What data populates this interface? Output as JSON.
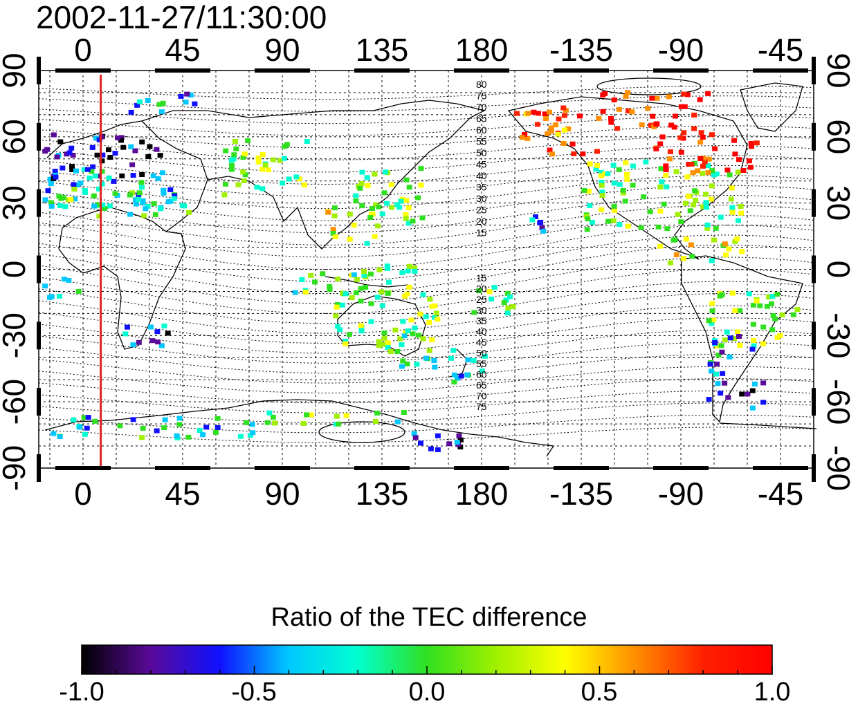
{
  "timestamp": "2002-11-27/11:30:00",
  "map": {
    "lon_ticks": [
      "0",
      "45",
      "90",
      "135",
      "180",
      "-135",
      "-90",
      "-45"
    ],
    "lat_ticks_left": [
      "90",
      "60",
      "30",
      "0",
      "-30",
      "-60",
      "-90"
    ],
    "lat_ticks_right": [
      "90",
      "60",
      "30",
      "0",
      "-30",
      "-60",
      "-90"
    ],
    "lon_range": [
      -20,
      330
    ],
    "lat_range": [
      -90,
      90
    ],
    "marker_longitude": 8,
    "marker_color": "#e02020",
    "magnetic_latitude_labels_north": [
      "80",
      "75",
      "70",
      "65",
      "60",
      "55",
      "50",
      "45",
      "40",
      "35",
      "30",
      "25",
      "20",
      "15"
    ],
    "magnetic_latitude_labels_south": [
      "15",
      "20",
      "25",
      "30",
      "35",
      "40",
      "45",
      "50",
      "55",
      "60",
      "65",
      "70",
      "75"
    ]
  },
  "colorbar": {
    "title": "Ratio of the TEC difference",
    "ticks": [
      "-1.0",
      "-0.5",
      "0.0",
      "0.5",
      "1.0"
    ],
    "range": [
      -1.0,
      1.0
    ],
    "colors": [
      "#000000",
      "#5a0a9a",
      "#1010ff",
      "#00c8ff",
      "#00ffd0",
      "#30e020",
      "#a0f000",
      "#ffff00",
      "#ff9000",
      "#ff2000",
      "#ff0000"
    ]
  }
}
